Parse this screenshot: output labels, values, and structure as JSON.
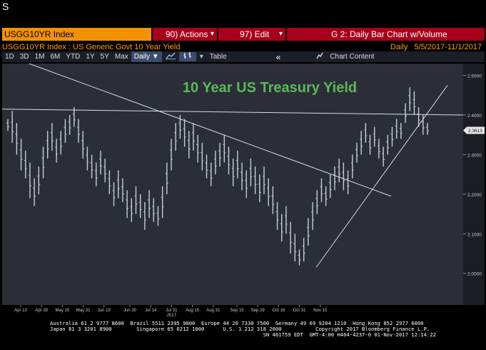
{
  "window": {
    "corner_label": "S"
  },
  "command_bar": {
    "security": "USGG10YR Index",
    "actions_label": "90) Actions",
    "edit_label": "97) Edit",
    "caret": "▾",
    "chart_title": "G 2: Daily Bar Chart w/Volume"
  },
  "header": {
    "subtitle": "USGG10YR Index : US Generic Govt 10 Year Yield",
    "period_label": "Daily",
    "date_range": "5/5/2017-11/1/2017"
  },
  "toolbar": {
    "ranges": [
      "1D",
      "3D",
      "1M",
      "6M",
      "YTD",
      "1Y",
      "5Y",
      "Max"
    ],
    "frequency": "Daily ▼",
    "table_label": "Table",
    "rewind_icon": "«",
    "chart_content_label": "Chart Content"
  },
  "chart_data": {
    "type": "bar",
    "title": "10 Year US Treasury Yield",
    "title_color": "#5cb85c",
    "ylim": [
      1.92,
      2.53
    ],
    "y_ticks": [
      {
        "value": 2.5,
        "label": "2.5000"
      },
      {
        "value": 2.4,
        "label": "2.4000"
      },
      {
        "value": 2.3,
        "label": "2.3000"
      },
      {
        "value": 2.2,
        "label": "2.2000"
      },
      {
        "value": 2.1,
        "label": "2.1000"
      },
      {
        "value": 2.0,
        "label": "2.0000"
      }
    ],
    "last_value_label": "2.3613",
    "last_value": 2.3613,
    "x_ticks": [
      "Apr 13",
      "Apr 28",
      "May 15",
      "May 31",
      "Jun 15",
      "Jun 30",
      "Jul 14",
      "Jul 31",
      "Aug 15",
      "Aug 31",
      "Sep 15",
      "Sep 29",
      "Oct 16",
      "Oct 31",
      "Nov 15"
    ],
    "year_label": "2017",
    "year_label_under": "Jul 31",
    "series": [
      {
        "values": [
          [
            2.39,
            2.36
          ],
          [
            2.41,
            2.33
          ],
          [
            2.38,
            2.3
          ],
          [
            2.34,
            2.26
          ],
          [
            2.31,
            2.24
          ],
          [
            2.28,
            2.19
          ],
          [
            2.24,
            2.17
          ],
          [
            2.27,
            2.2
          ],
          [
            2.32,
            2.24
          ],
          [
            2.36,
            2.29
          ],
          [
            2.38,
            2.31
          ],
          [
            2.34,
            2.28
          ],
          [
            2.36,
            2.3
          ],
          [
            2.39,
            2.33
          ],
          [
            2.4,
            2.35
          ],
          [
            2.42,
            2.37
          ],
          [
            2.39,
            2.33
          ],
          [
            2.36,
            2.29
          ],
          [
            2.32,
            2.26
          ],
          [
            2.3,
            2.24
          ],
          [
            2.28,
            2.22
          ],
          [
            2.31,
            2.25
          ],
          [
            2.29,
            2.23
          ],
          [
            2.26,
            2.2
          ],
          [
            2.23,
            2.17
          ],
          [
            2.26,
            2.19
          ],
          [
            2.24,
            2.18
          ],
          [
            2.21,
            2.14
          ],
          [
            2.19,
            2.13
          ],
          [
            2.22,
            2.15
          ],
          [
            2.2,
            2.14
          ],
          [
            2.18,
            2.11
          ],
          [
            2.21,
            2.14
          ],
          [
            2.19,
            2.13
          ],
          [
            2.17,
            2.12
          ],
          [
            2.22,
            2.14
          ],
          [
            2.28,
            2.2
          ],
          [
            2.34,
            2.26
          ],
          [
            2.38,
            2.31
          ],
          [
            2.4,
            2.34
          ],
          [
            2.39,
            2.32
          ],
          [
            2.36,
            2.29
          ],
          [
            2.38,
            2.31
          ],
          [
            2.35,
            2.28
          ],
          [
            2.33,
            2.26
          ],
          [
            2.3,
            2.24
          ],
          [
            2.28,
            2.22
          ],
          [
            2.31,
            2.25
          ],
          [
            2.33,
            2.27
          ],
          [
            2.35,
            2.28
          ],
          [
            2.32,
            2.25
          ],
          [
            2.29,
            2.22
          ],
          [
            2.31,
            2.24
          ],
          [
            2.28,
            2.21
          ],
          [
            2.26,
            2.19
          ],
          [
            2.29,
            2.22
          ],
          [
            2.27,
            2.2
          ],
          [
            2.25,
            2.18
          ],
          [
            2.27,
            2.2
          ],
          [
            2.24,
            2.17
          ],
          [
            2.22,
            2.15
          ],
          [
            2.18,
            2.11
          ],
          [
            2.15,
            2.08
          ],
          [
            2.17,
            2.1
          ],
          [
            2.13,
            2.05
          ],
          [
            2.1,
            2.03
          ],
          [
            2.06,
            2.02
          ],
          [
            2.09,
            2.03
          ],
          [
            2.14,
            2.07
          ],
          [
            2.18,
            2.11
          ],
          [
            2.21,
            2.15
          ],
          [
            2.24,
            2.18
          ],
          [
            2.22,
            2.17
          ],
          [
            2.25,
            2.19
          ],
          [
            2.27,
            2.21
          ],
          [
            2.29,
            2.23
          ],
          [
            2.28,
            2.21
          ],
          [
            2.26,
            2.2
          ],
          [
            2.3,
            2.24
          ],
          [
            2.33,
            2.28
          ],
          [
            2.36,
            2.3
          ],
          [
            2.38,
            2.33
          ],
          [
            2.35,
            2.3
          ],
          [
            2.37,
            2.32
          ],
          [
            2.34,
            2.29
          ],
          [
            2.32,
            2.27
          ],
          [
            2.35,
            2.3
          ],
          [
            2.37,
            2.32
          ],
          [
            2.39,
            2.34
          ],
          [
            2.38,
            2.34
          ],
          [
            2.43,
            2.38
          ],
          [
            2.47,
            2.41
          ],
          [
            2.46,
            2.4
          ],
          [
            2.42,
            2.37
          ],
          [
            2.4,
            2.35
          ],
          [
            2.38,
            2.35
          ]
        ]
      }
    ],
    "trendlines_note": "",
    "colors": {
      "bars": "#c8ccd6",
      "lines": "#d8dce4",
      "grid": "#4a5060",
      "plot_bg": "#2b2e36"
    }
  },
  "status": {
    "line1": "Australia 61 2 9777 8600  Brazil 5511 2395 9000  Europe 44 20 7330 7500  Germany 49 69 9204 1210  Hong Kong 852 2977 6000",
    "line2": "Japan 81 3 3201 8900        Singapore 65 6212 1000      U.S. 1 212 318 2000           Copyright 2017 Bloomberg Finance L.P.",
    "line3": "                                                                     SN 461759 EDT  GMT-4:00 H464-4237-0 01-Nov-2017 12:14:22"
  }
}
